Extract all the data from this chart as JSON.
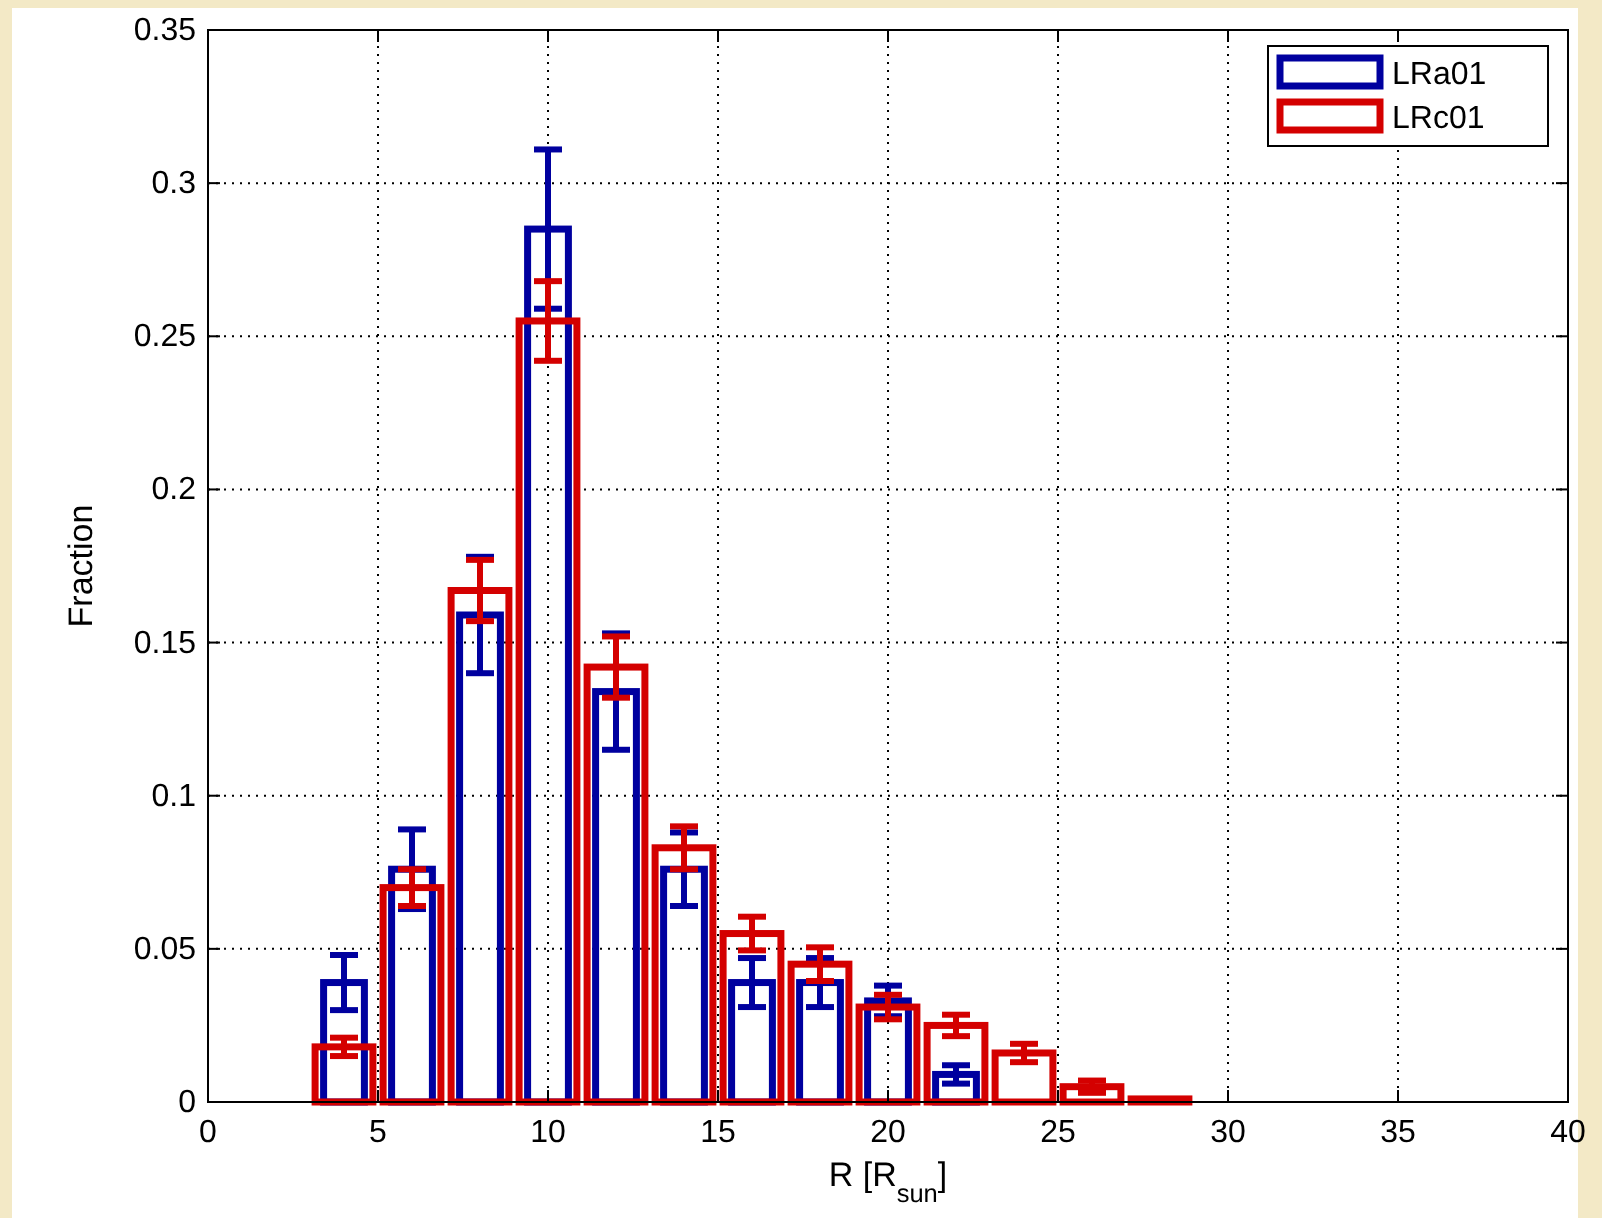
{
  "chart_data": {
    "type": "bar",
    "xlabel": "R [R$_{sun}$]",
    "ylabel": "Fraction",
    "x": [
      0,
      2,
      4,
      6,
      8,
      10,
      12,
      14,
      16,
      18,
      20,
      22,
      24,
      26,
      28,
      30,
      32,
      34,
      36,
      38,
      40
    ],
    "series": [
      {
        "name": "LRa01",
        "color": "#00009f",
        "values": [
          0,
          0,
          0.039,
          0.076,
          0.159,
          0.285,
          0.134,
          0.076,
          0.039,
          0.039,
          0.033,
          0.009,
          0,
          0,
          0,
          0,
          0,
          0,
          0,
          0,
          0
        ],
        "errors": [
          null,
          null,
          0.009,
          0.013,
          0.019,
          0.026,
          0.019,
          0.012,
          0.008,
          0.008,
          0.005,
          0.003,
          null,
          null,
          null,
          null,
          null,
          null,
          null,
          null,
          null
        ]
      },
      {
        "name": "LRc01",
        "color": "#d40000",
        "values": [
          0,
          0,
          0.018,
          0.07,
          0.167,
          0.255,
          0.142,
          0.083,
          0.055,
          0.045,
          0.031,
          0.025,
          0.016,
          0.005,
          0.001,
          0,
          0,
          0,
          0,
          0,
          0
        ],
        "errors": [
          null,
          null,
          0.003,
          0.006,
          0.01,
          0.013,
          0.01,
          0.007,
          0.0055,
          0.0055,
          0.004,
          0.0035,
          0.003,
          0.002,
          null,
          null,
          null,
          null,
          null,
          null,
          null
        ]
      }
    ],
    "xlim": [
      0,
      40
    ],
    "xticks": [
      0,
      5,
      10,
      15,
      20,
      25,
      30,
      35,
      40
    ],
    "ylim": [
      0,
      0.35
    ],
    "yticks": [
      0,
      0.05,
      0.1,
      0.15,
      0.2,
      0.25,
      0.3,
      0.35
    ],
    "grid": true,
    "legend": "top right"
  }
}
